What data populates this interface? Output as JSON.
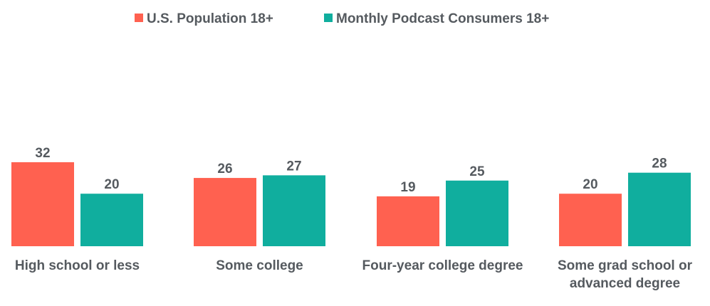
{
  "chart_data": {
    "type": "bar",
    "title": "",
    "xlabel": "",
    "ylabel": "",
    "legend_position": "top-center",
    "grid": false,
    "ylim": [
      0,
      32
    ],
    "categories": [
      [
        "High school or less"
      ],
      [
        "Some college"
      ],
      [
        "Four-year college degree"
      ],
      [
        "Some grad school or",
        "advanced degree"
      ]
    ],
    "series": [
      {
        "name": "U.S. Population 18+",
        "color": "#ff6150",
        "values": [
          32,
          26,
          19,
          20
        ]
      },
      {
        "name": "Monthly Podcast Consumers 18+",
        "color": "#10ae9e",
        "values": [
          20,
          27,
          25,
          28
        ]
      }
    ]
  }
}
